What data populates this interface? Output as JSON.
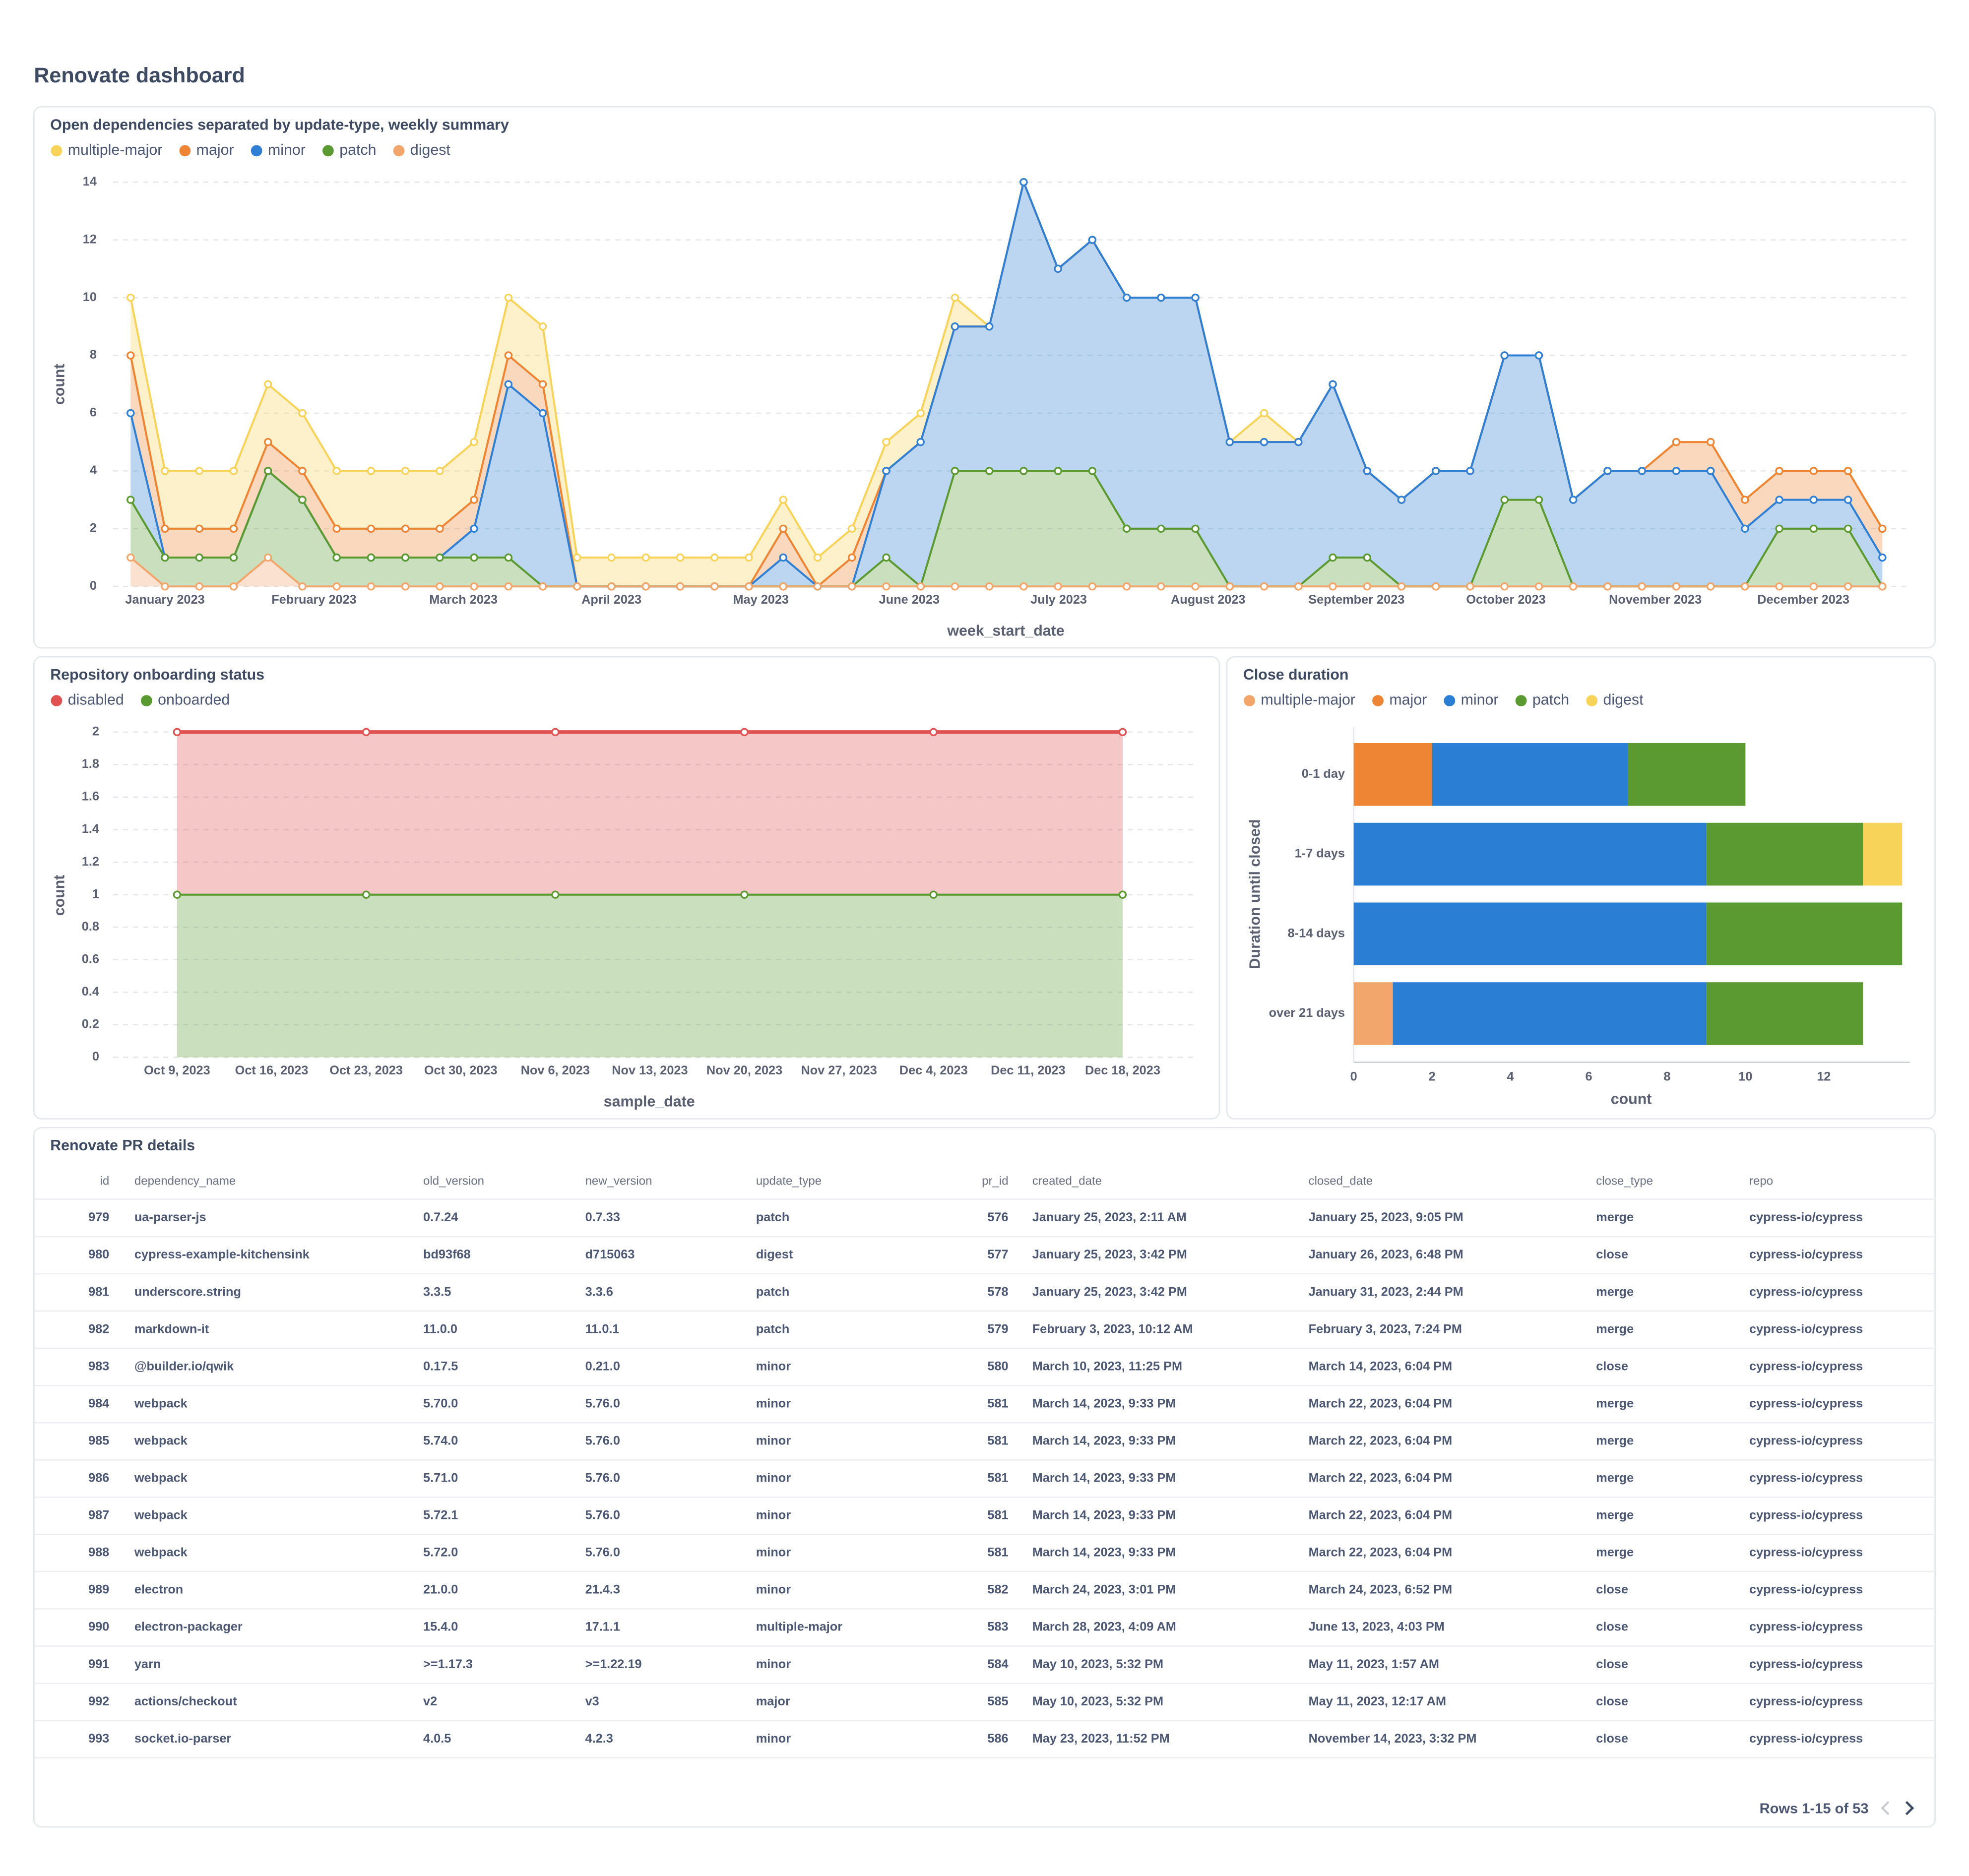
{
  "title": "Renovate dashboard",
  "chart_data": [
    {
      "type": "area",
      "stacked": true,
      "title": "Open dependencies separated by update-type, weekly summary",
      "xlabel": "week_start_date",
      "ylabel": "count",
      "xlim": [
        0,
        51
      ],
      "xticks": [
        {
          "value": 1,
          "label": "January 2023"
        },
        {
          "value": 5.34,
          "label": "February 2023"
        },
        {
          "value": 9.69,
          "label": "March 2023"
        },
        {
          "value": 14.0,
          "label": "April 2023"
        },
        {
          "value": 18.35,
          "label": "May 2023"
        },
        {
          "value": 22.67,
          "label": "June 2023"
        },
        {
          "value": 27.02,
          "label": "July 2023"
        },
        {
          "value": 31.37,
          "label": "August 2023"
        },
        {
          "value": 35.69,
          "label": "September 2023"
        },
        {
          "value": 40.04,
          "label": "October 2023"
        },
        {
          "value": 44.39,
          "label": "November 2023"
        },
        {
          "value": 48.7,
          "label": "December 2023"
        }
      ],
      "ylim": [
        0,
        14
      ],
      "yticks": [
        0,
        2,
        4,
        6,
        8,
        10,
        12,
        14
      ],
      "grid": true,
      "series": [
        {
          "name": "multiple-major",
          "color": "#f7d35a",
          "values": [
            2,
            2,
            2,
            2,
            2,
            2,
            2,
            2,
            2,
            2,
            2,
            2,
            2,
            1,
            1,
            1,
            1,
            1,
            1,
            1,
            1,
            1,
            1,
            1,
            1,
            0,
            0,
            0,
            0,
            0,
            0,
            0,
            0,
            1,
            0,
            0,
            0,
            0,
            0,
            0,
            0,
            0,
            0,
            0,
            0,
            0,
            0,
            0,
            0,
            0,
            0,
            0
          ]
        },
        {
          "name": "major",
          "color": "#ed8535",
          "values": [
            2,
            1,
            1,
            1,
            1,
            1,
            1,
            1,
            1,
            1,
            1,
            1,
            1,
            0,
            0,
            0,
            0,
            0,
            0,
            1,
            0,
            1,
            0,
            0,
            0,
            0,
            0,
            0,
            0,
            0,
            0,
            0,
            0,
            0,
            0,
            0,
            0,
            0,
            0,
            0,
            0,
            0,
            0,
            0,
            0,
            1,
            1,
            1,
            1,
            1,
            1,
            1
          ]
        },
        {
          "name": "minor",
          "color": "#2f7fd4",
          "values": [
            3,
            0,
            0,
            0,
            0,
            0,
            0,
            0,
            0,
            0,
            1,
            6,
            6,
            0,
            0,
            0,
            0,
            0,
            0,
            1,
            0,
            0,
            3,
            5,
            5,
            5,
            10,
            7,
            8,
            8,
            8,
            8,
            5,
            5,
            5,
            6,
            3,
            3,
            4,
            4,
            5,
            5,
            3,
            4,
            4,
            4,
            4,
            2,
            1,
            1,
            1,
            1
          ]
        },
        {
          "name": "patch",
          "color": "#5b9a31",
          "values": [
            2,
            1,
            1,
            1,
            3,
            3,
            1,
            1,
            1,
            1,
            1,
            1,
            0,
            0,
            0,
            0,
            0,
            0,
            0,
            0,
            0,
            0,
            1,
            0,
            4,
            4,
            4,
            4,
            4,
            2,
            2,
            2,
            0,
            0,
            0,
            1,
            1,
            0,
            0,
            0,
            3,
            3,
            0,
            0,
            0,
            0,
            0,
            0,
            2,
            2,
            2,
            0
          ]
        },
        {
          "name": "digest",
          "color": "#f2a66c",
          "values": [
            1,
            0,
            0,
            0,
            1,
            0,
            0,
            0,
            0,
            0,
            0,
            0,
            0,
            0,
            0,
            0,
            0,
            0,
            0,
            0,
            0,
            0,
            0,
            0,
            0,
            0,
            0,
            0,
            0,
            0,
            0,
            0,
            0,
            0,
            0,
            0,
            0,
            0,
            0,
            0,
            0,
            0,
            0,
            0,
            0,
            0,
            0,
            0,
            0,
            0,
            0,
            0
          ]
        }
      ]
    },
    {
      "type": "area",
      "stacked": true,
      "title": "Repository onboarding status",
      "xlabel": "sample_date",
      "ylabel": "count",
      "xticks": [
        "Oct 9, 2023",
        "Oct 16, 2023",
        "Oct 23, 2023",
        "Oct 30, 2023",
        "Nov 6, 2023",
        "Nov 13, 2023",
        "Nov 20, 2023",
        "Nov 27, 2023",
        "Dec 4, 2023",
        "Dec 11, 2023",
        "Dec 18, 2023"
      ],
      "x": [
        "Oct 9, 2023",
        "Oct 23, 2023",
        "Nov 6, 2023",
        "Nov 20, 2023",
        "Dec 4, 2023",
        "Dec 18, 2023"
      ],
      "ylim": [
        0,
        2
      ],
      "yticks": [
        0,
        0.2,
        0.4,
        0.6,
        0.8,
        1,
        1.2,
        1.4,
        1.6,
        1.8,
        2
      ],
      "grid": true,
      "series": [
        {
          "name": "disabled",
          "color": "#e05252",
          "values": [
            1,
            1,
            1,
            1,
            1,
            1
          ]
        },
        {
          "name": "onboarded",
          "color": "#5b9a31",
          "values": [
            1,
            1,
            1,
            1,
            1,
            1
          ]
        }
      ]
    },
    {
      "type": "barh",
      "stacked": true,
      "title": "Close duration",
      "xlabel": "count",
      "ylabel": "Duration until closed",
      "categories": [
        "0-1 day",
        "1-7 days",
        "8-14 days",
        "over 21 days"
      ],
      "xlim": [
        0,
        14.2
      ],
      "xticks": [
        0,
        2,
        4,
        6,
        8,
        10,
        12
      ],
      "series": [
        {
          "name": "multiple-major",
          "color": "#f2a66c",
          "values": [
            0,
            0,
            0,
            1
          ]
        },
        {
          "name": "major",
          "color": "#ed8535",
          "values": [
            2,
            0,
            0,
            0
          ]
        },
        {
          "name": "minor",
          "color": "#2a7fd4",
          "values": [
            5,
            9,
            9,
            8
          ]
        },
        {
          "name": "patch",
          "color": "#5b9a31",
          "values": [
            3,
            4,
            5,
            4
          ]
        },
        {
          "name": "digest",
          "color": "#f7d35a",
          "values": [
            0,
            1,
            0,
            0
          ]
        }
      ]
    }
  ],
  "table": {
    "title": "Renovate PR details",
    "columns": [
      "id",
      "dependency_name",
      "old_version",
      "new_version",
      "update_type",
      "pr_id",
      "created_date",
      "closed_date",
      "close_type",
      "repo"
    ],
    "rows": [
      [
        979,
        "ua-parser-js",
        "0.7.24",
        "0.7.33",
        "patch",
        576,
        "January 25, 2023, 2:11 AM",
        "January 25, 2023, 9:05 PM",
        "merge",
        "cypress-io/cypress"
      ],
      [
        980,
        "cypress-example-kitchensink",
        "bd93f68",
        "d715063",
        "digest",
        577,
        "January 25, 2023, 3:42 PM",
        "January 26, 2023, 6:48 PM",
        "close",
        "cypress-io/cypress"
      ],
      [
        981,
        "underscore.string",
        "3.3.5",
        "3.3.6",
        "patch",
        578,
        "January 25, 2023, 3:42 PM",
        "January 31, 2023, 2:44 PM",
        "merge",
        "cypress-io/cypress"
      ],
      [
        982,
        "markdown-it",
        "11.0.0",
        "11.0.1",
        "patch",
        579,
        "February 3, 2023, 10:12 AM",
        "February 3, 2023, 7:24 PM",
        "merge",
        "cypress-io/cypress"
      ],
      [
        983,
        "@builder.io/qwik",
        "0.17.5",
        "0.21.0",
        "minor",
        580,
        "March 10, 2023, 11:25 PM",
        "March 14, 2023, 6:04 PM",
        "close",
        "cypress-io/cypress"
      ],
      [
        984,
        "webpack",
        "5.70.0",
        "5.76.0",
        "minor",
        581,
        "March 14, 2023, 9:33 PM",
        "March 22, 2023, 6:04 PM",
        "merge",
        "cypress-io/cypress"
      ],
      [
        985,
        "webpack",
        "5.74.0",
        "5.76.0",
        "minor",
        581,
        "March 14, 2023, 9:33 PM",
        "March 22, 2023, 6:04 PM",
        "merge",
        "cypress-io/cypress"
      ],
      [
        986,
        "webpack",
        "5.71.0",
        "5.76.0",
        "minor",
        581,
        "March 14, 2023, 9:33 PM",
        "March 22, 2023, 6:04 PM",
        "merge",
        "cypress-io/cypress"
      ],
      [
        987,
        "webpack",
        "5.72.1",
        "5.76.0",
        "minor",
        581,
        "March 14, 2023, 9:33 PM",
        "March 22, 2023, 6:04 PM",
        "merge",
        "cypress-io/cypress"
      ],
      [
        988,
        "webpack",
        "5.72.0",
        "5.76.0",
        "minor",
        581,
        "March 14, 2023, 9:33 PM",
        "March 22, 2023, 6:04 PM",
        "merge",
        "cypress-io/cypress"
      ],
      [
        989,
        "electron",
        "21.0.0",
        "21.4.3",
        "minor",
        582,
        "March 24, 2023, 3:01 PM",
        "March 24, 2023, 6:52 PM",
        "close",
        "cypress-io/cypress"
      ],
      [
        990,
        "electron-packager",
        "15.4.0",
        "17.1.1",
        "multiple-major",
        583,
        "March 28, 2023, 4:09 AM",
        "June 13, 2023, 4:03 PM",
        "close",
        "cypress-io/cypress"
      ],
      [
        991,
        "yarn",
        ">=1.17.3",
        ">=1.22.19",
        "minor",
        584,
        "May 10, 2023, 5:32 PM",
        "May 11, 2023, 1:57 AM",
        "close",
        "cypress-io/cypress"
      ],
      [
        992,
        "actions/checkout",
        "v2",
        "v3",
        "major",
        585,
        "May 10, 2023, 5:32 PM",
        "May 11, 2023, 12:17 AM",
        "close",
        "cypress-io/cypress"
      ],
      [
        993,
        "socket.io-parser",
        "4.0.5",
        "4.2.3",
        "minor",
        586,
        "May 23, 2023, 11:52 PM",
        "November 14, 2023, 3:32 PM",
        "close",
        "cypress-io/cypress"
      ]
    ],
    "footer": "Rows 1-15 of 53"
  }
}
